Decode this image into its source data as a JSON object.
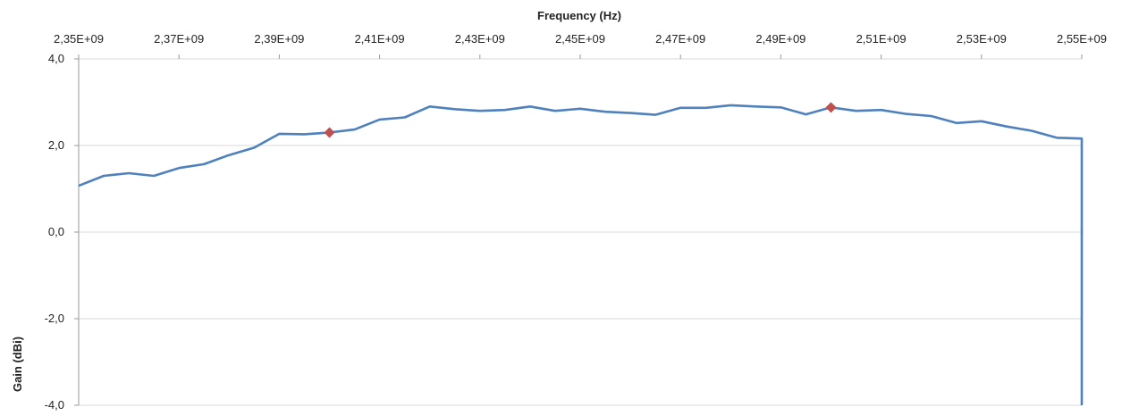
{
  "chart_data": {
    "type": "line",
    "title": "",
    "xlabel": "Frequency (Hz)",
    "ylabel": "Gain (dBi)",
    "xlim": [
      2350000000,
      2550000000
    ],
    "ylim": [
      -4,
      4
    ],
    "x_ticks": [
      2350000000,
      2370000000,
      2390000000,
      2410000000,
      2430000000,
      2450000000,
      2470000000,
      2490000000,
      2510000000,
      2530000000,
      2550000000
    ],
    "x_tick_labels": [
      "2,35E+09",
      "2,37E+09",
      "2,39E+09",
      "2,41E+09",
      "2,43E+09",
      "2,45E+09",
      "2,47E+09",
      "2,49E+09",
      "2,51E+09",
      "2,53E+09",
      "2,55E+09"
    ],
    "y_ticks": [
      4,
      2,
      0,
      -2,
      -4
    ],
    "y_tick_labels": [
      "4,0",
      "2,0",
      "0,0",
      "-2,0",
      "-4,0"
    ],
    "x_axis_position": "top",
    "grid": "horizontal",
    "legend": "none",
    "colors": {
      "line": "#4f81bd",
      "marker": "#c0504d",
      "grid": "#d9d9d9"
    },
    "series": [
      {
        "x": [
          2350000000,
          2355000000,
          2360000000,
          2365000000,
          2370000000,
          2375000000,
          2380000000,
          2385000000,
          2390000000,
          2395000000,
          2400000000,
          2405000000,
          2410000000,
          2415000000,
          2420000000,
          2425000000,
          2430000000,
          2435000000,
          2440000000,
          2445000000,
          2450000000,
          2455000000,
          2460000000,
          2465000000,
          2470000000,
          2475000000,
          2480000000,
          2485000000,
          2490000000,
          2495000000,
          2500000000,
          2505000000,
          2510000000,
          2515000000,
          2520000000,
          2525000000,
          2530000000,
          2535000000,
          2540000000,
          2545000000,
          2550000000
        ],
        "values": [
          1.07,
          1.3,
          1.36,
          1.3,
          1.48,
          1.57,
          1.78,
          1.95,
          2.27,
          2.26,
          2.3,
          2.37,
          2.6,
          2.65,
          2.9,
          2.84,
          2.8,
          2.82,
          2.9,
          2.8,
          2.85,
          2.78,
          2.75,
          2.71,
          2.87,
          2.87,
          2.93,
          2.9,
          2.88,
          2.72,
          2.88,
          2.8,
          2.82,
          2.73,
          2.68,
          2.52,
          2.56,
          2.44,
          2.34,
          2.18,
          2.16
        ]
      }
    ],
    "highlight_points": [
      {
        "x": 2400000000,
        "value": 2.3
      },
      {
        "x": 2500000000,
        "value": 2.88
      }
    ],
    "right_edge_drop_to": -4
  }
}
